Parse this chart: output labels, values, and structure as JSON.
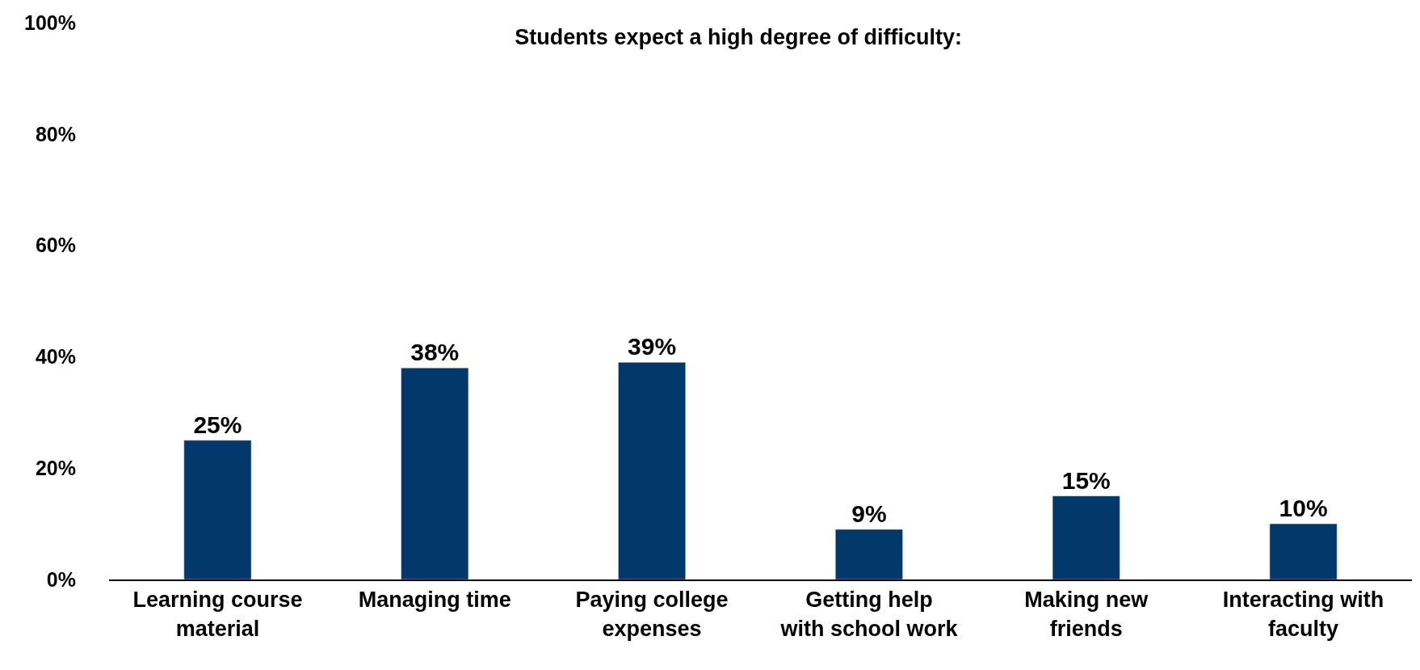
{
  "chart_data": {
    "type": "bar",
    "title": "Students expect a high degree of difficulty:",
    "categories": [
      "Learning course material",
      "Managing time",
      "Paying college expenses",
      "Getting help with school work",
      "Making new friends",
      "Interacting with faculty"
    ],
    "values": [
      25,
      38,
      39,
      9,
      15,
      10
    ],
    "value_labels": [
      "25%",
      "38%",
      "39%",
      "9%",
      "15%",
      "10%"
    ],
    "color": "#03386a",
    "ylim": [
      0,
      100
    ],
    "yticks": [
      {
        "value": 0,
        "label": "0%"
      },
      {
        "value": 20,
        "label": "20%"
      },
      {
        "value": 40,
        "label": "40%"
      },
      {
        "value": 60,
        "label": "60%"
      },
      {
        "value": 80,
        "label": "80%"
      },
      {
        "value": 100,
        "label": "100%"
      }
    ],
    "legend": false
  }
}
